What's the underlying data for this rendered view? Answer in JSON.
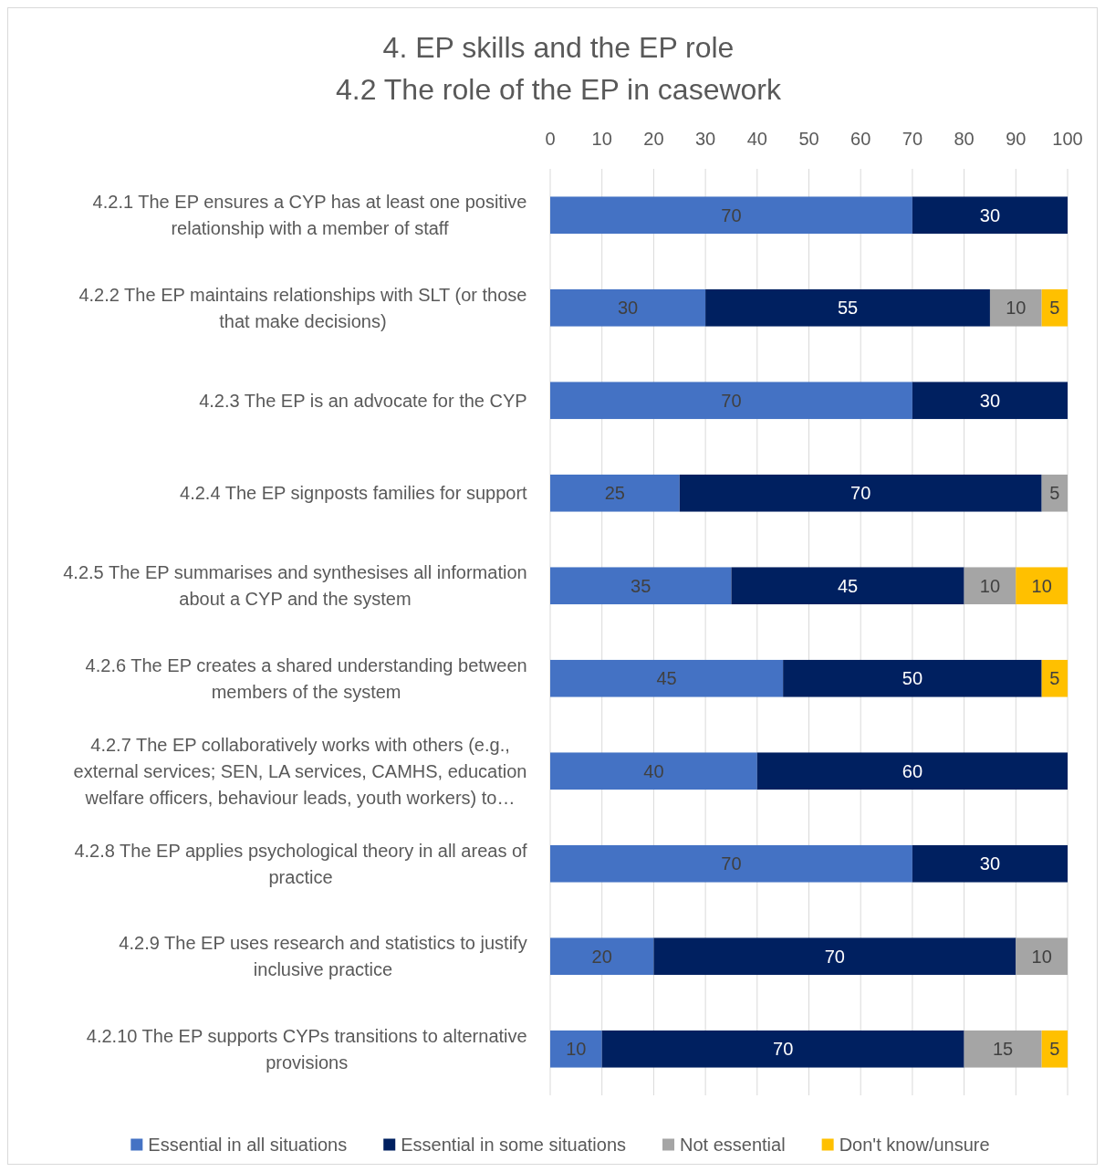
{
  "chart_data": {
    "type": "bar",
    "orientation": "horizontal",
    "stacked": true,
    "title": "4. EP skills and the EP role",
    "subtitle": "4.2 The role of the EP in casework",
    "categories": [
      "4.2.1 The EP ensures a CYP has at least one positive relationship with a member of staff",
      "4.2.2 The EP maintains relationships with SLT (or those that make decisions)",
      "4.2.3 The EP is an advocate for the CYP",
      "4.2.4 The EP signposts families for support",
      "4.2.5 The EP summarises and synthesises all information about a CYP and the system",
      "4.2.6 The EP creates a shared understanding between members of the system",
      "4.2.7 The EP collaboratively works with others (e.g., external services; SEN, LA services, CAMHS, education welfare officers, behaviour leads, youth workers) to…",
      "4.2.8 The EP applies psychological theory in all areas of practice",
      "4.2.9 The EP uses research and statistics to justify inclusive practice",
      "4.2.10 The EP supports CYPs transitions to alternative provisions"
    ],
    "series": [
      {
        "name": "Essential in all situations",
        "color": "#4472c4",
        "values": [
          70,
          30,
          70,
          25,
          35,
          45,
          40,
          70,
          20,
          10
        ]
      },
      {
        "name": "Essential in some situations",
        "color": "#002060",
        "values": [
          30,
          55,
          30,
          70,
          45,
          50,
          60,
          30,
          70,
          70
        ]
      },
      {
        "name": "Not essential",
        "color": "#a5a5a5",
        "values": [
          null,
          10,
          null,
          5,
          10,
          null,
          null,
          null,
          10,
          15
        ]
      },
      {
        "name": "Don't know/unsure",
        "color": "#ffc000",
        "values": [
          null,
          5,
          null,
          null,
          10,
          5,
          null,
          null,
          null,
          5
        ]
      }
    ],
    "xlim": [
      0,
      100
    ],
    "xticks": [
      0,
      10,
      20,
      30,
      40,
      50,
      60,
      70,
      80,
      90,
      100
    ],
    "grid": "x",
    "legend": "bottom",
    "data_labels": true
  }
}
